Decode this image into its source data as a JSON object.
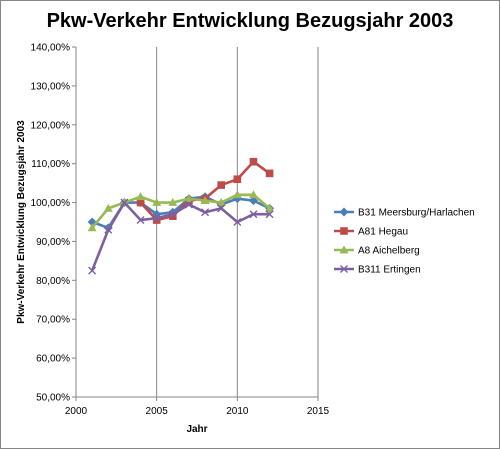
{
  "chart_data": {
    "type": "line",
    "title": "Pkw-Verkehr Entwicklung Bezugsjahr 2003",
    "xlabel": "Jahr",
    "ylabel": "Pkw-Verkehr Entwicklung Bezugsjahr 2003",
    "xlim": [
      2000,
      2015
    ],
    "ylim": [
      50,
      140
    ],
    "xticks": [
      "2000",
      "2005",
      "2010",
      "2015"
    ],
    "yticks": [
      "50,00%",
      "60,00%",
      "70,00%",
      "80,00%",
      "90,00%",
      "100,00%",
      "110,00%",
      "120,00%",
      "130,00%",
      "140,00%"
    ],
    "grid": "vertical",
    "legend_position": "right",
    "series": [
      {
        "name": "B31 Meersburg/Harlachen",
        "color": "#4a7ebb",
        "marker": "diamond",
        "x": [
          2001,
          2002,
          2003,
          2004,
          2005,
          2006,
          2007,
          2008,
          2009,
          2010,
          2011,
          2012
        ],
        "y": [
          95.0,
          93.5,
          100.0,
          100.0,
          97.0,
          97.5,
          101.0,
          101.5,
          99.5,
          101.0,
          100.5,
          98.5
        ]
      },
      {
        "name": "A81 Hegau",
        "color": "#be4b48",
        "marker": "square",
        "x": [
          2004,
          2005,
          2006,
          2007,
          2008,
          2009,
          2010,
          2011,
          2012
        ],
        "y": [
          100.0,
          95.5,
          96.5,
          100.5,
          101.0,
          104.5,
          106.0,
          110.5,
          107.5
        ]
      },
      {
        "name": "A8 Aichelberg",
        "color": "#98b954",
        "marker": "triangle",
        "x": [
          2001,
          2002,
          2003,
          2004,
          2005,
          2006,
          2007,
          2008,
          2009,
          2010,
          2011,
          2012
        ],
        "y": [
          93.5,
          98.5,
          100.0,
          101.5,
          100.0,
          100.0,
          101.0,
          100.5,
          100.0,
          102.0,
          102.0,
          98.5
        ]
      },
      {
        "name": "B311 Ertingen",
        "color": "#7d60a0",
        "marker": "x",
        "x": [
          2001,
          2002,
          2003,
          2004,
          2005,
          2006,
          2007,
          2008,
          2009,
          2010,
          2011,
          2012
        ],
        "y": [
          82.5,
          93.0,
          100.0,
          95.5,
          96.0,
          97.0,
          99.5,
          97.5,
          98.5,
          95.0,
          97.0,
          97.0
        ]
      }
    ]
  }
}
